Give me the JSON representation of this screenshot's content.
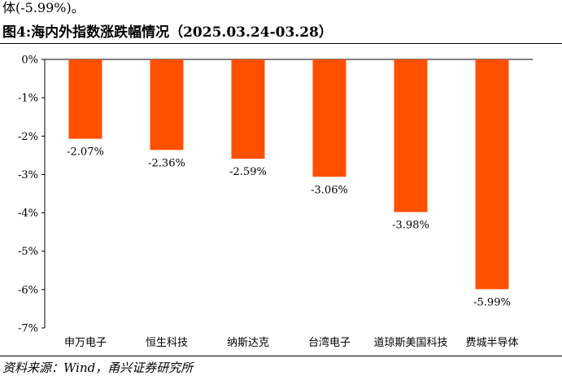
{
  "header": {
    "intro_fragment": "体(-5.99%)。",
    "figure_title": "图4:海内外指数涨跌幅情况（2025.03.24-03.28）"
  },
  "source": {
    "text": "资料来源：Wind，甬兴证券研究所"
  },
  "chart_data": {
    "type": "bar",
    "title": "",
    "xlabel": "",
    "ylabel": "",
    "categories": [
      "申万电子",
      "恒生科技",
      "纳斯达克",
      "台湾电子",
      "道琼斯美国科技",
      "费城半导体"
    ],
    "values": [
      -2.07,
      -2.36,
      -2.59,
      -3.06,
      -3.98,
      -5.99
    ],
    "value_labels": [
      "-2.07%",
      "-2.36%",
      "-2.59%",
      "-3.06%",
      "-3.98%",
      "-5.99%"
    ],
    "ylim": [
      -7,
      0
    ],
    "yticks": [
      0,
      -1,
      -2,
      -3,
      -4,
      -5,
      -6,
      -7
    ],
    "ytick_labels": [
      "0%",
      "-1%",
      "-2%",
      "-3%",
      "-4%",
      "-5%",
      "-6%",
      "-7%"
    ],
    "bar_color": "#FF5000",
    "grid": false,
    "legend": "none"
  }
}
